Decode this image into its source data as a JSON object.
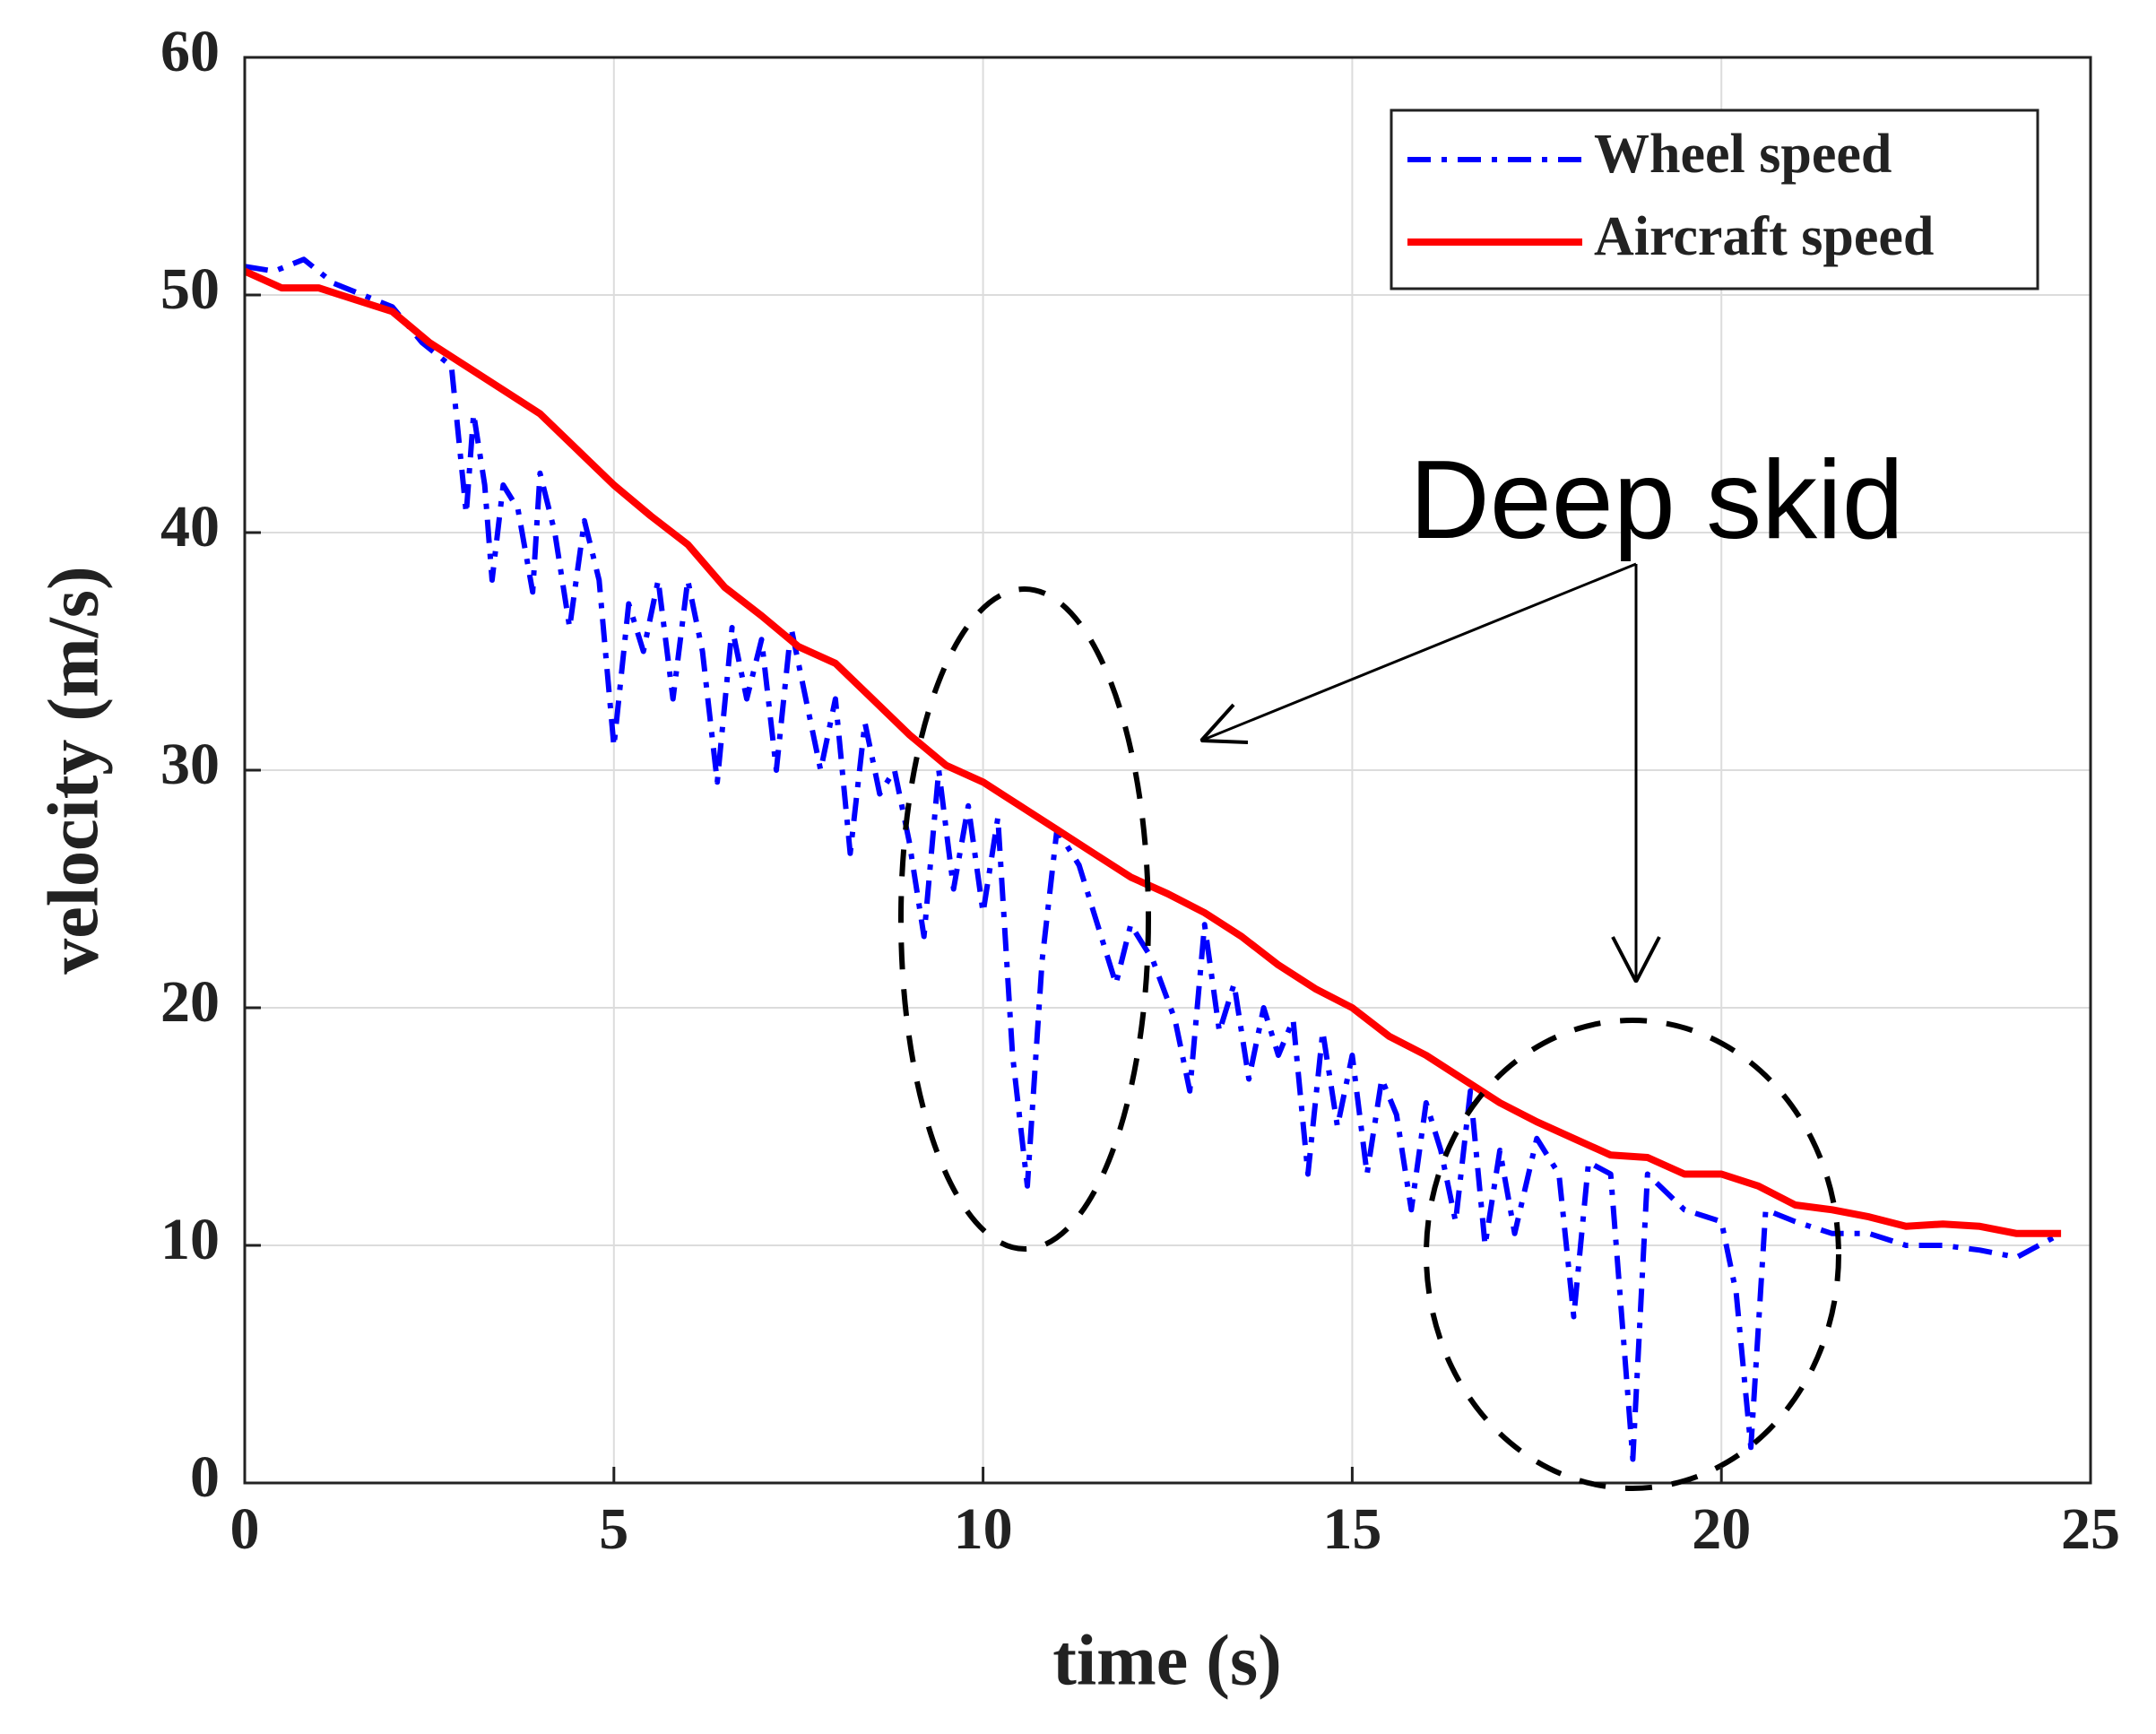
{
  "chart_data": {
    "type": "line",
    "xlabel": "time (s)",
    "ylabel": "velocity (m/s)",
    "xlim": [
      0,
      25
    ],
    "xticks": [
      0,
      5,
      10,
      15,
      20,
      25
    ],
    "ylim": [
      0,
      60
    ],
    "yticks": [
      0,
      10,
      20,
      30,
      40,
      50,
      60
    ],
    "grid": true,
    "legend": "upper right",
    "annotations": [
      {
        "text": "Deep skid"
      }
    ],
    "series": [
      {
        "name": "Wheel speed",
        "color": "#0000ff",
        "linestyle": "dashdot",
        "x": [
          0,
          0.4,
          0.8,
          1.2,
          1.6,
          2,
          2.4,
          2.8,
          3.0,
          3.1,
          3.25,
          3.35,
          3.5,
          3.7,
          3.9,
          4.0,
          4.2,
          4.4,
          4.6,
          4.8,
          5.0,
          5.2,
          5.4,
          5.6,
          5.8,
          6.0,
          6.2,
          6.4,
          6.6,
          6.8,
          7.0,
          7.2,
          7.4,
          7.6,
          7.8,
          8.0,
          8.2,
          8.4,
          8.6,
          8.8,
          9.0,
          9.2,
          9.4,
          9.6,
          9.8,
          10.0,
          10.2,
          10.4,
          10.6,
          10.8,
          11.0,
          11.3,
          11.6,
          11.8,
          12.0,
          12.3,
          12.6,
          12.8,
          13.0,
          13.2,
          13.4,
          13.6,
          13.8,
          14.0,
          14.2,
          14.4,
          14.6,
          14.8,
          15.0,
          15.2,
          15.4,
          15.6,
          15.8,
          16.0,
          16.2,
          16.4,
          16.6,
          16.8,
          17.0,
          17.2,
          17.5,
          17.8,
          18.0,
          18.2,
          18.5,
          18.8,
          19.0,
          19.5,
          20.0,
          20.2,
          20.4,
          20.6,
          21,
          21.5,
          22,
          22.5,
          23,
          23.5,
          24,
          24.6
        ],
        "values": [
          51.2,
          51,
          51.5,
          50.5,
          50,
          49.5,
          48,
          47,
          40.8,
          45,
          42,
          38,
          42,
          41,
          37.5,
          42.5,
          40,
          36,
          40.5,
          38,
          31,
          37,
          35,
          38,
          33,
          38,
          35,
          29.5,
          36,
          33,
          35.5,
          30,
          36,
          33,
          30,
          33,
          26.5,
          32,
          29,
          30,
          27,
          23,
          30,
          25,
          28.5,
          24,
          28,
          18,
          12.5,
          22,
          27.5,
          26,
          23,
          21,
          23.5,
          22,
          19.5,
          16.5,
          23.5,
          19,
          21,
          17,
          20,
          18,
          19.5,
          13,
          19,
          15,
          18,
          13,
          17,
          15.5,
          11.5,
          16,
          14,
          11,
          16.5,
          10,
          14,
          10.5,
          14.5,
          13,
          7,
          13.5,
          13,
          1,
          13,
          11.5,
          11,
          8,
          1.5,
          11.5,
          11,
          10.5,
          10.5,
          10,
          10,
          9.8,
          9.5,
          10.5
        ]
      },
      {
        "name": "Aircraft speed",
        "color": "#ff0000",
        "linestyle": "solid",
        "x": [
          0,
          0.5,
          1,
          1.5,
          2,
          2.5,
          3,
          3.5,
          4,
          4.5,
          5,
          5.5,
          6,
          6.5,
          7,
          7.5,
          8,
          8.5,
          9,
          9.5,
          10,
          10.5,
          11,
          11.5,
          12,
          12.5,
          13,
          13.5,
          14,
          14.5,
          15,
          15.5,
          16,
          16.5,
          17,
          17.5,
          18,
          18.5,
          19,
          19.5,
          20,
          20.5,
          21,
          21.5,
          22,
          22.5,
          23,
          23.5,
          24,
          24.6
        ],
        "values": [
          51,
          50.3,
          50.3,
          49.8,
          49.3,
          48,
          47,
          46,
          45,
          43.5,
          42,
          40.7,
          39.5,
          37.7,
          36.5,
          35.2,
          34.5,
          33,
          31.5,
          30.2,
          29.5,
          28.5,
          27.5,
          26.5,
          25.5,
          24.8,
          24,
          23,
          21.8,
          20.8,
          20,
          18.8,
          18,
          17,
          16,
          15.2,
          14.5,
          13.8,
          13.7,
          13,
          13,
          12.5,
          11.7,
          11.5,
          11.2,
          10.8,
          10.9,
          10.8,
          10.5,
          10.5
        ]
      }
    ]
  }
}
